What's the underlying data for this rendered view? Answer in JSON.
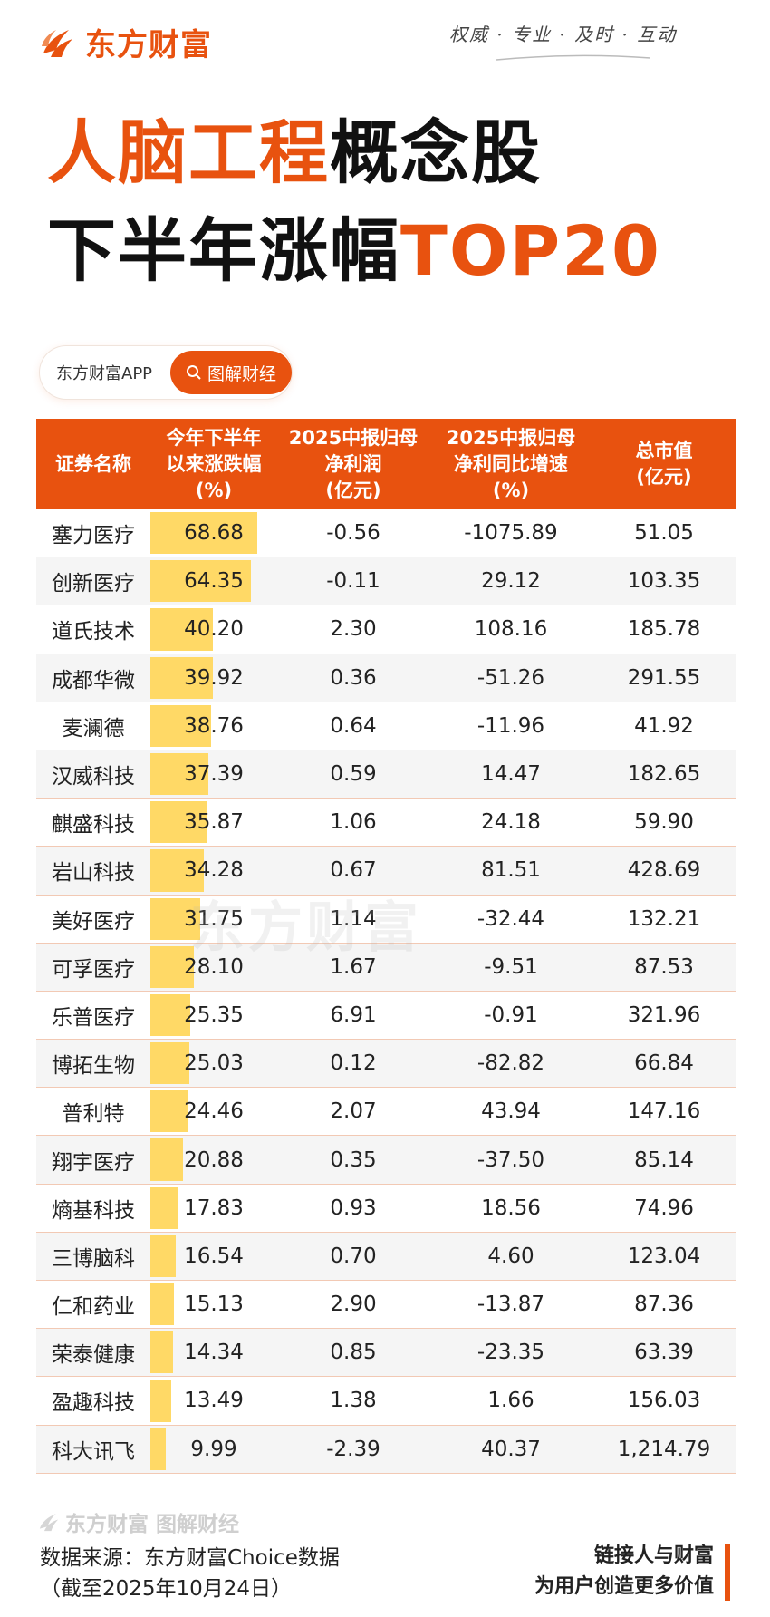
{
  "brand": {
    "name": "东方财富",
    "slogan": "权威 · 专业 · 及时 · 互动"
  },
  "title": {
    "line1_orange": "人脑工程",
    "line1_black": "概念股",
    "line2_black": "下半年涨幅",
    "line2_orange": "TOP20"
  },
  "app": {
    "name": "东方财富APP",
    "tag": "图解财经"
  },
  "table": {
    "headers": [
      "证券名称",
      "今年下半年\n以来涨跌幅\n(%)",
      "2025中报归母\n净利润\n(亿元)",
      "2025中报归母\n净利同比增速\n(%)",
      "总市值\n(亿元)"
    ],
    "max_change": 68.68,
    "rows": [
      [
        "塞力医疗",
        "68.68",
        "-0.56",
        "-1075.89",
        "51.05"
      ],
      [
        "创新医疗",
        "64.35",
        "-0.11",
        "29.12",
        "103.35"
      ],
      [
        "道氏技术",
        "40.20",
        "2.30",
        "108.16",
        "185.78"
      ],
      [
        "成都华微",
        "39.92",
        "0.36",
        "-51.26",
        "291.55"
      ],
      [
        "麦澜德",
        "38.76",
        "0.64",
        "-11.96",
        "41.92"
      ],
      [
        "汉威科技",
        "37.39",
        "0.59",
        "14.47",
        "182.65"
      ],
      [
        "麒盛科技",
        "35.87",
        "1.06",
        "24.18",
        "59.90"
      ],
      [
        "岩山科技",
        "34.28",
        "0.67",
        "81.51",
        "428.69"
      ],
      [
        "美好医疗",
        "31.75",
        "1.14",
        "-32.44",
        "132.21"
      ],
      [
        "可孚医疗",
        "28.10",
        "1.67",
        "-9.51",
        "87.53"
      ],
      [
        "乐普医疗",
        "25.35",
        "6.91",
        "-0.91",
        "321.96"
      ],
      [
        "博拓生物",
        "25.03",
        "0.12",
        "-82.82",
        "66.84"
      ],
      [
        "普利特",
        "24.46",
        "2.07",
        "43.94",
        "147.16"
      ],
      [
        "翔宇医疗",
        "20.88",
        "0.35",
        "-37.50",
        "85.14"
      ],
      [
        "熵基科技",
        "17.83",
        "0.93",
        "18.56",
        "74.96"
      ],
      [
        "三博脑科",
        "16.54",
        "0.70",
        "4.60",
        "123.04"
      ],
      [
        "仁和药业",
        "15.13",
        "2.90",
        "-13.87",
        "87.36"
      ],
      [
        "荣泰健康",
        "14.34",
        "0.85",
        "-23.35",
        "63.39"
      ],
      [
        "盈趣科技",
        "13.49",
        "1.38",
        "1.66",
        "156.03"
      ],
      [
        "科大讯飞",
        "9.99",
        "-2.39",
        "40.37",
        "1,214.79"
      ]
    ]
  },
  "footer": {
    "brand": "东方财富 图解财经",
    "source_line1": "数据来源：东方财富Choice数据",
    "source_line2": "（截至2025年10月24日）",
    "tagline_line1": "链接人与财富",
    "tagline_line2": "为用户创造更多价值"
  },
  "colors": {
    "brand_orange": "#e8520f",
    "bar_yellow": "#ffd966"
  }
}
